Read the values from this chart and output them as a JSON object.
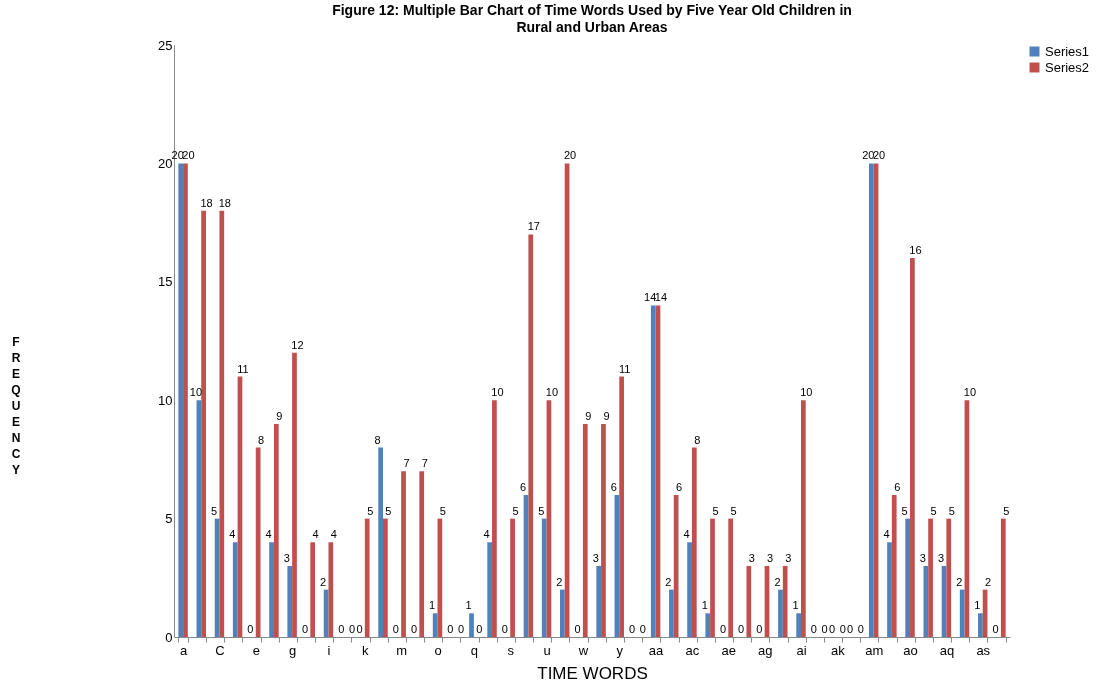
{
  "chart_data": {
    "type": "bar",
    "title": "Figure 12: Multiple Bar Chart of Time Words Used by Five Year Old Children in Rural and Urban Areas",
    "xlabel": "TIME WORDS",
    "ylabel": "FREQUENCY",
    "categories": [
      "a",
      null,
      "C",
      null,
      "e",
      null,
      "g",
      null,
      "i",
      null,
      "k",
      null,
      "m",
      null,
      "o",
      null,
      "q",
      null,
      "s",
      null,
      "u",
      null,
      "w",
      null,
      "y",
      null,
      "aa",
      null,
      "ac",
      null,
      "ae",
      null,
      "ag",
      null,
      "ai",
      null,
      "ak",
      null,
      "am",
      null,
      "ao",
      null,
      "aq",
      null,
      "as",
      null
    ],
    "series": [
      {
        "name": "Series1",
        "color": "#4f81bd",
        "values": [
          20,
          10,
          5,
          4,
          0,
          4,
          3,
          0,
          2,
          0,
          0,
          8,
          0,
          0,
          1,
          0,
          1,
          4,
          0,
          6,
          5,
          2,
          0,
          3,
          6,
          0,
          14,
          2,
          4,
          1,
          0,
          0,
          0,
          2,
          1,
          0,
          0,
          0,
          20,
          4,
          5,
          3,
          3,
          2,
          1,
          0
        ]
      },
      {
        "name": "Series2",
        "color": "#c0504d",
        "values": [
          20,
          18,
          18,
          11,
          8,
          9,
          12,
          4,
          4,
          0,
          5,
          5,
          7,
          7,
          5,
          0,
          0,
          10,
          5,
          17,
          10,
          20,
          9,
          9,
          11,
          0,
          14,
          6,
          8,
          5,
          5,
          3,
          3,
          3,
          10,
          0,
          0,
          0,
          20,
          6,
          16,
          5,
          5,
          10,
          2,
          5
        ]
      }
    ],
    "ylim": [
      0,
      25
    ],
    "yticks": [
      0,
      5,
      10,
      15,
      20,
      25
    ],
    "grid": false,
    "legend": "right",
    "data_labels": true
  }
}
